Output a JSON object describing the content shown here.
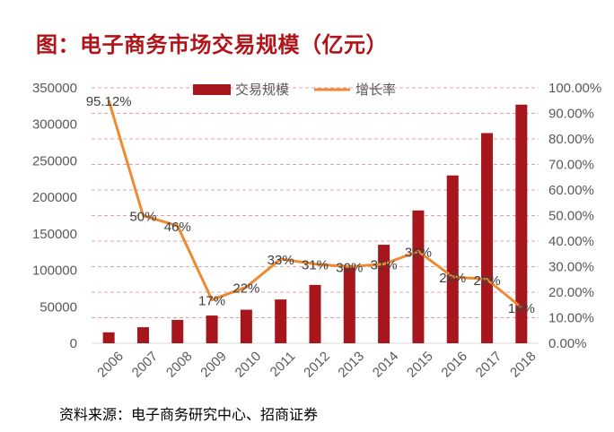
{
  "title": "图：电子商务市场交易规模（亿元）",
  "source": "资料来源：电子商务研究中心、招商证券",
  "chart_data": {
    "type": "bar",
    "categories": [
      "2006",
      "2007",
      "2008",
      "2009",
      "2010",
      "2011",
      "2012",
      "2013",
      "2014",
      "2015",
      "2016",
      "2017",
      "2018"
    ],
    "series": [
      {
        "name": "交易规模",
        "kind": "bar",
        "axis": "left",
        "color": "#a6161c",
        "values": [
          15000,
          22000,
          32000,
          38000,
          46000,
          60000,
          80000,
          104000,
          135000,
          182000,
          230000,
          288000,
          327000
        ]
      },
      {
        "name": "增长率",
        "kind": "line",
        "axis": "right",
        "color": "#ee8a32",
        "values": [
          95.12,
          50,
          46,
          17,
          22,
          33,
          31,
          30,
          31,
          36,
          26,
          25,
          14
        ],
        "labels": [
          "95.12%",
          "50%",
          "46%",
          "17%",
          "22%",
          "33%",
          "31%",
          "30%",
          "31%",
          "36%",
          "26%",
          "25%",
          "14%"
        ]
      }
    ],
    "y_left": {
      "ylim": [
        0,
        350000
      ],
      "ticks": [
        "0",
        "50000",
        "100000",
        "150000",
        "200000",
        "250000",
        "300000",
        "350000"
      ]
    },
    "y_right": {
      "ylim": [
        0,
        100
      ],
      "ticks": [
        "0.00%",
        "10.00%",
        "20.00%",
        "30.00%",
        "40.00%",
        "50.00%",
        "60.00%",
        "70.00%",
        "80.00%",
        "90.00%",
        "100.00%"
      ]
    },
    "grid": true,
    "gridline_style": "dashed",
    "legend": "top-center"
  }
}
